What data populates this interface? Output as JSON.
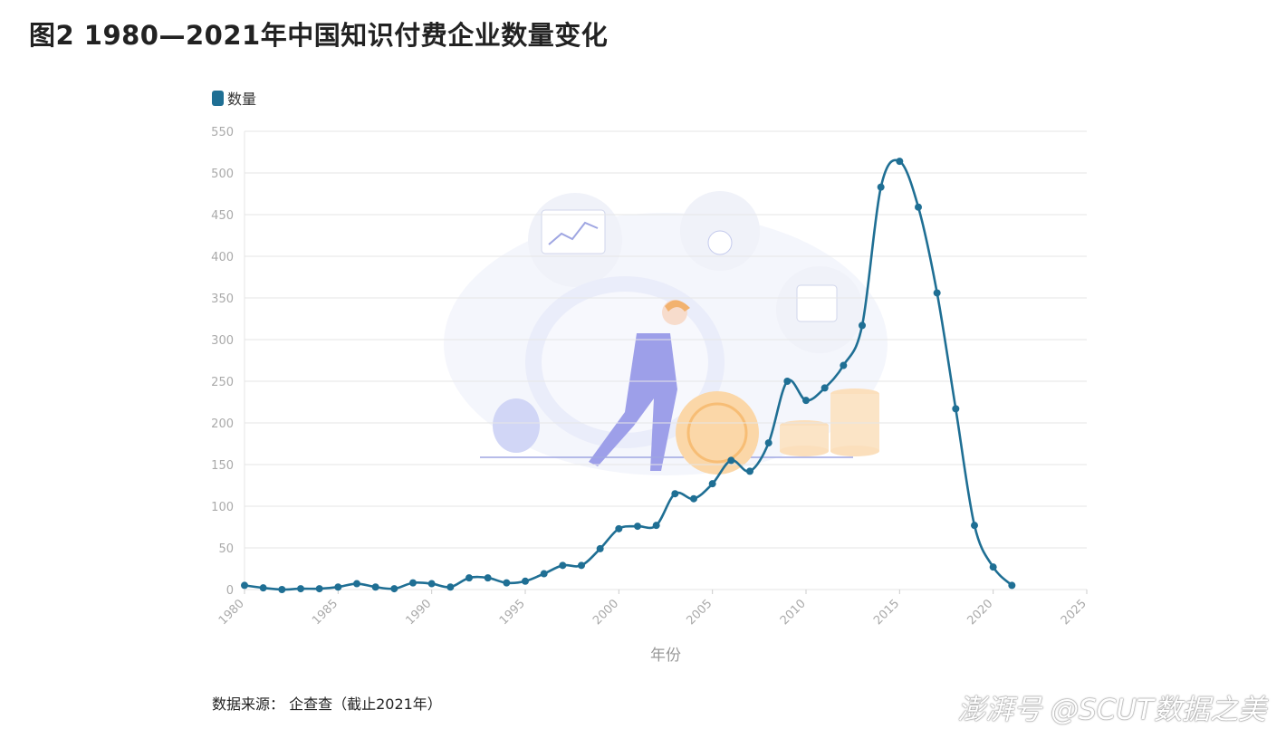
{
  "figure": {
    "title": "图2  1980—2021年中国知识付费企业数量变化",
    "source": "数据来源：  企查查（截止2021年）",
    "watermark": "澎湃号  @SCUT数据之美"
  },
  "colors": {
    "series": "#1f6f94",
    "grid": "#e6e6e6",
    "tick_text": "#aaaaaa",
    "axis_title": "#999999"
  },
  "chart_data": {
    "type": "line",
    "smooth": true,
    "legend_position": "top-left",
    "grid": true,
    "xlabel": "年份",
    "ylabel": "",
    "xlim": [
      1980,
      2025
    ],
    "ylim": [
      0,
      550
    ],
    "xticks": [
      1980,
      1985,
      1990,
      1995,
      2000,
      2005,
      2010,
      2015,
      2020,
      2025
    ],
    "yticks": [
      0,
      50,
      100,
      150,
      200,
      250,
      300,
      350,
      400,
      450,
      500,
      550
    ],
    "x": [
      1980,
      1981,
      1982,
      1983,
      1984,
      1985,
      1986,
      1987,
      1988,
      1989,
      1990,
      1991,
      1992,
      1993,
      1994,
      1995,
      1996,
      1997,
      1998,
      1999,
      2000,
      2001,
      2002,
      2003,
      2004,
      2005,
      2006,
      2007,
      2008,
      2009,
      2010,
      2011,
      2012,
      2013,
      2014,
      2015,
      2016,
      2017,
      2018,
      2019,
      2020,
      2021
    ],
    "series": [
      {
        "name": "数量",
        "values": [
          5,
          2,
          0,
          1,
          1,
          3,
          7,
          3,
          1,
          8,
          7,
          3,
          14,
          14,
          8,
          10,
          19,
          29,
          29,
          49,
          73,
          76,
          77,
          115,
          109,
          127,
          155,
          142,
          176,
          250,
          227,
          242,
          269,
          317,
          483,
          514,
          459,
          356,
          217,
          77,
          27,
          5
        ]
      }
    ]
  }
}
